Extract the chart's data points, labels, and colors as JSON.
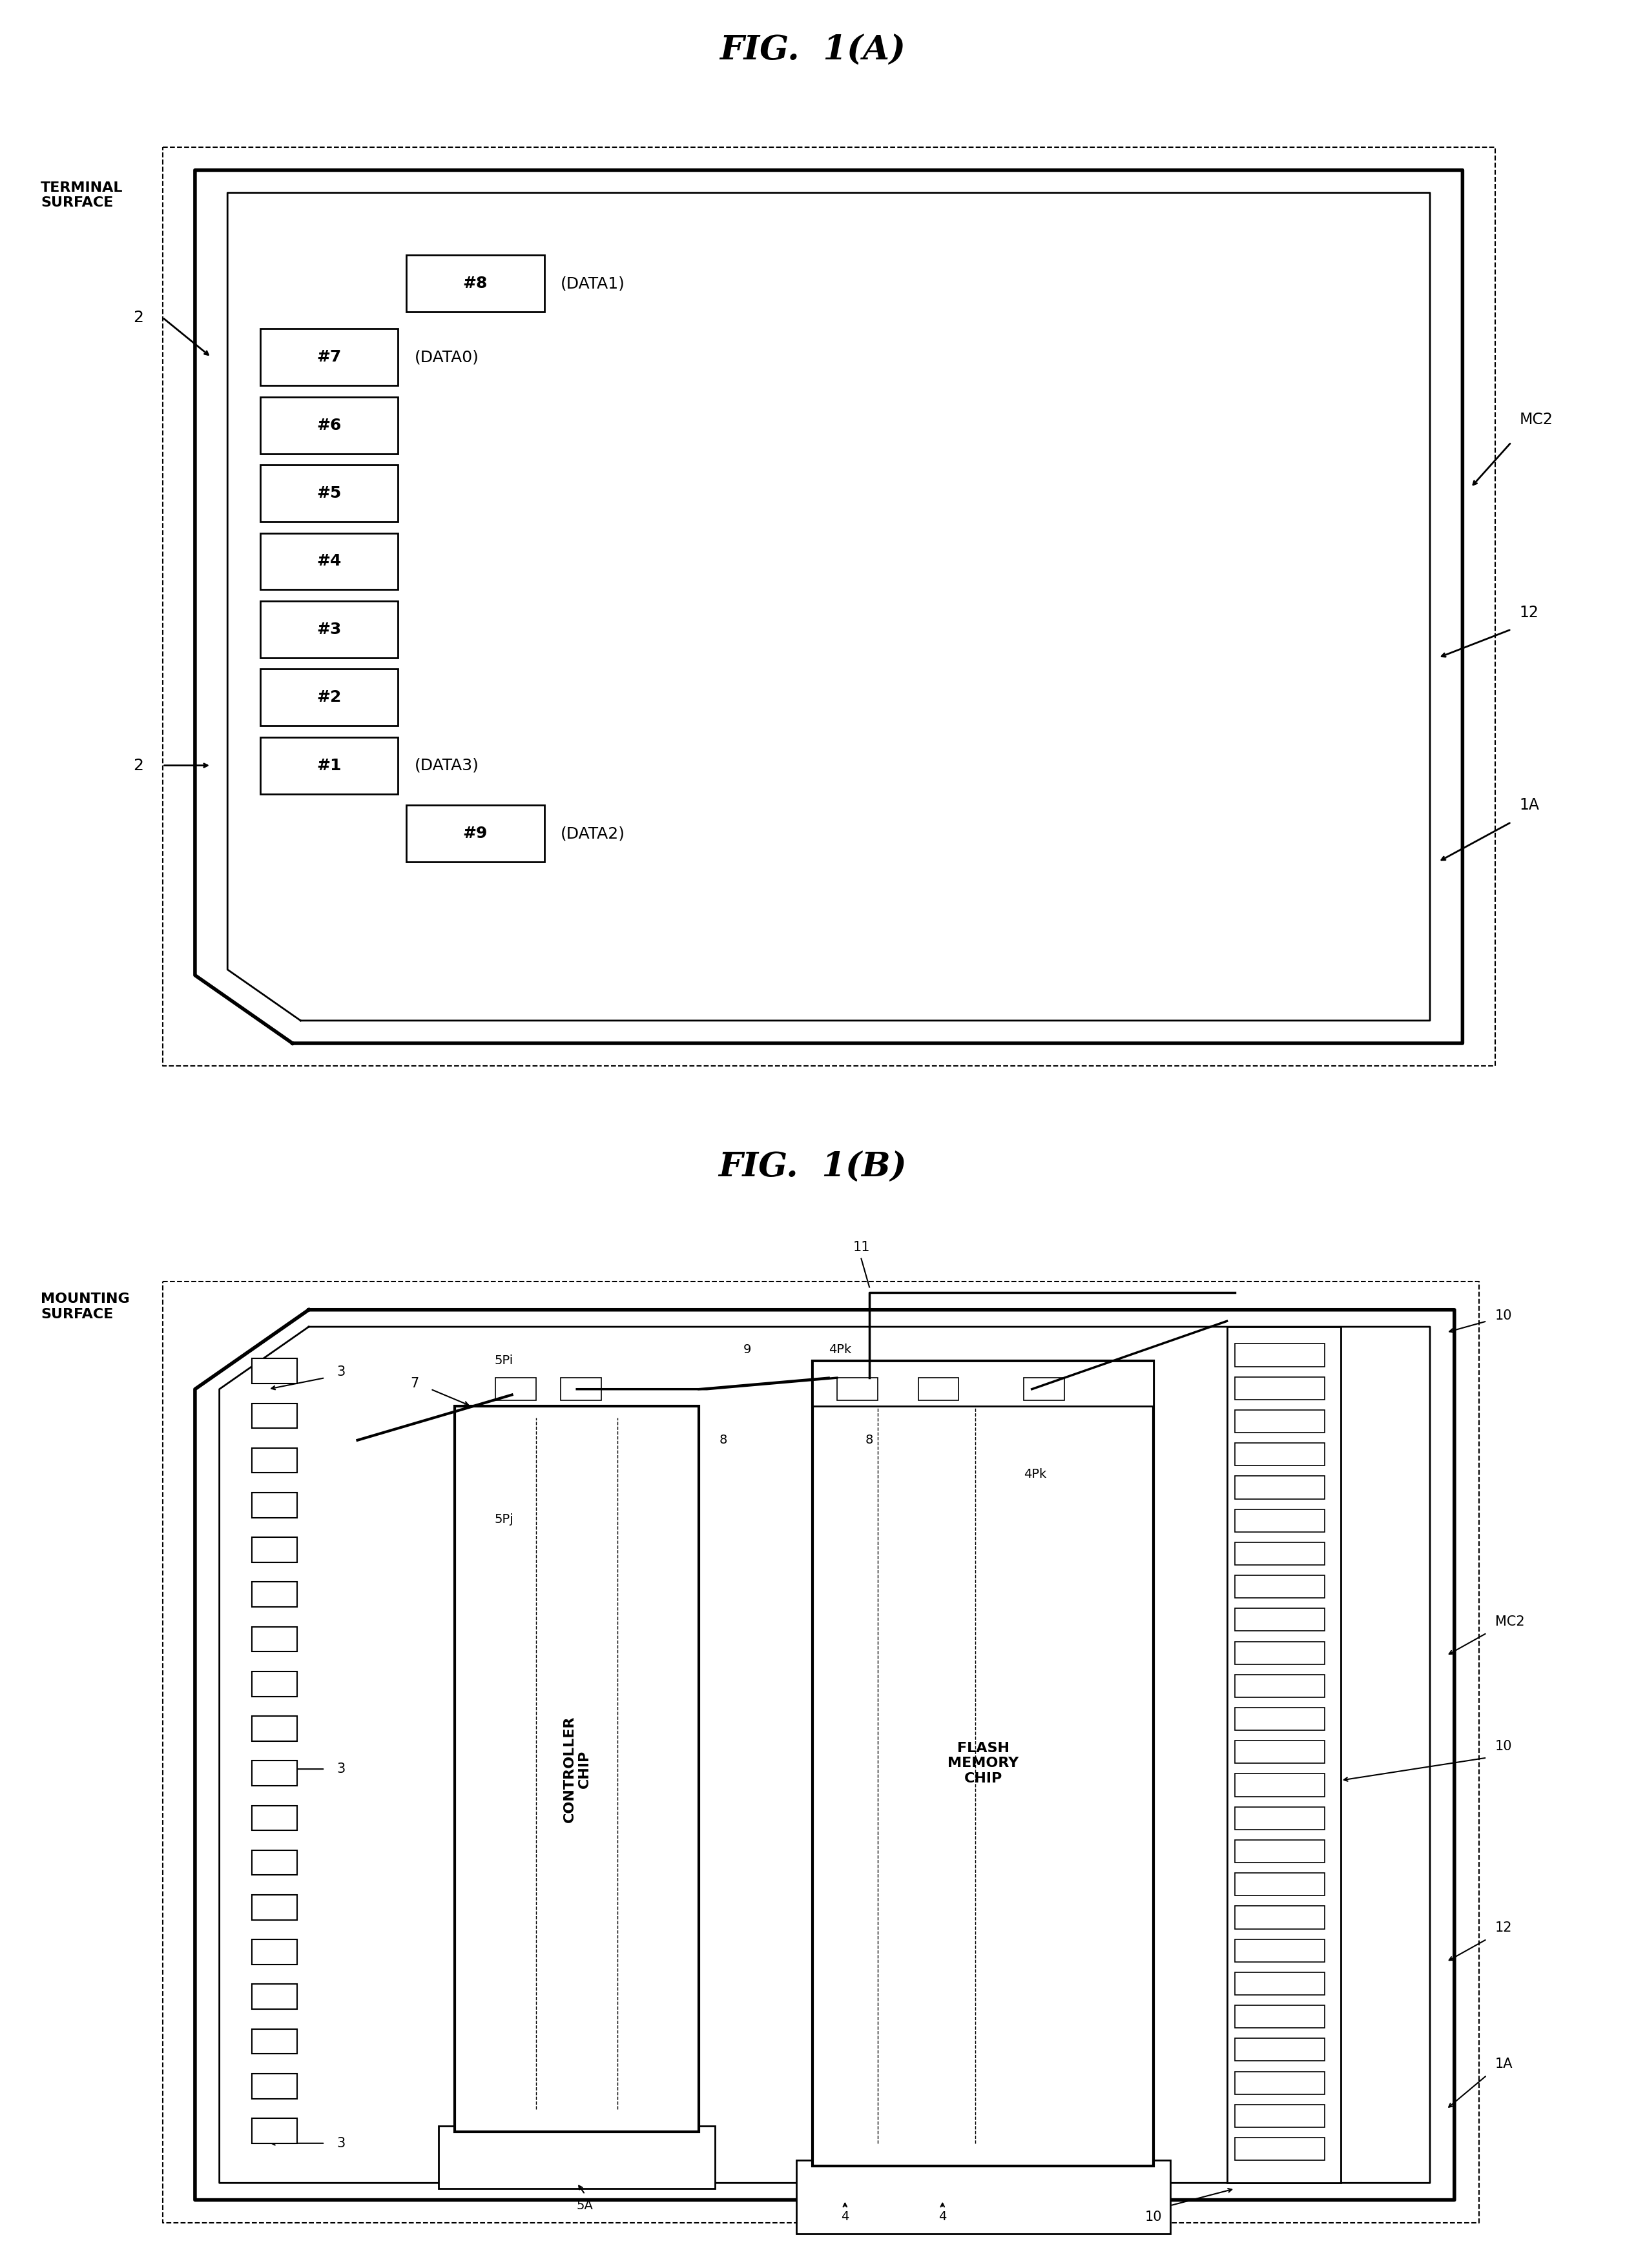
{
  "fig_title_A": "FIG.  1(A)",
  "fig_title_B": "FIG.  1(B)",
  "bg_color": "#ffffff",
  "line_color": "#000000",
  "terminal_surface_label": "TERMINAL\nSURFACE",
  "mounting_surface_label": "MOUNTING\nSURFACE",
  "mc2_label": "MC2",
  "label_12": "12",
  "label_1A": "1A",
  "label_2_top": "2",
  "label_2_bot": "2",
  "terminal_data_A": {
    "#8": "(DATA1)",
    "#7": "(DATA0)",
    "#1": "(DATA3)",
    "#9": "(DATA2)"
  },
  "controller_label": "CONTROLLER\nCHIP",
  "flash_label": "FLASH\nMEMORY\nCHIP",
  "label_5Pi": "5Pi",
  "label_5Pj": "5Pj",
  "label_5A": "5A",
  "label_9": "9",
  "label_8_left": "8",
  "label_8_right": "8",
  "label_4Pk_top": "4Pk",
  "label_4Pk_bot": "4Pk",
  "label_11": "11",
  "label_3_top": "3",
  "label_3_mid": "3",
  "label_3_bot": "3",
  "label_7": "7",
  "label_4_left": "4",
  "label_4_right": "4",
  "label_10_top": "10",
  "label_10_right1": "10",
  "label_10_bot": "10"
}
